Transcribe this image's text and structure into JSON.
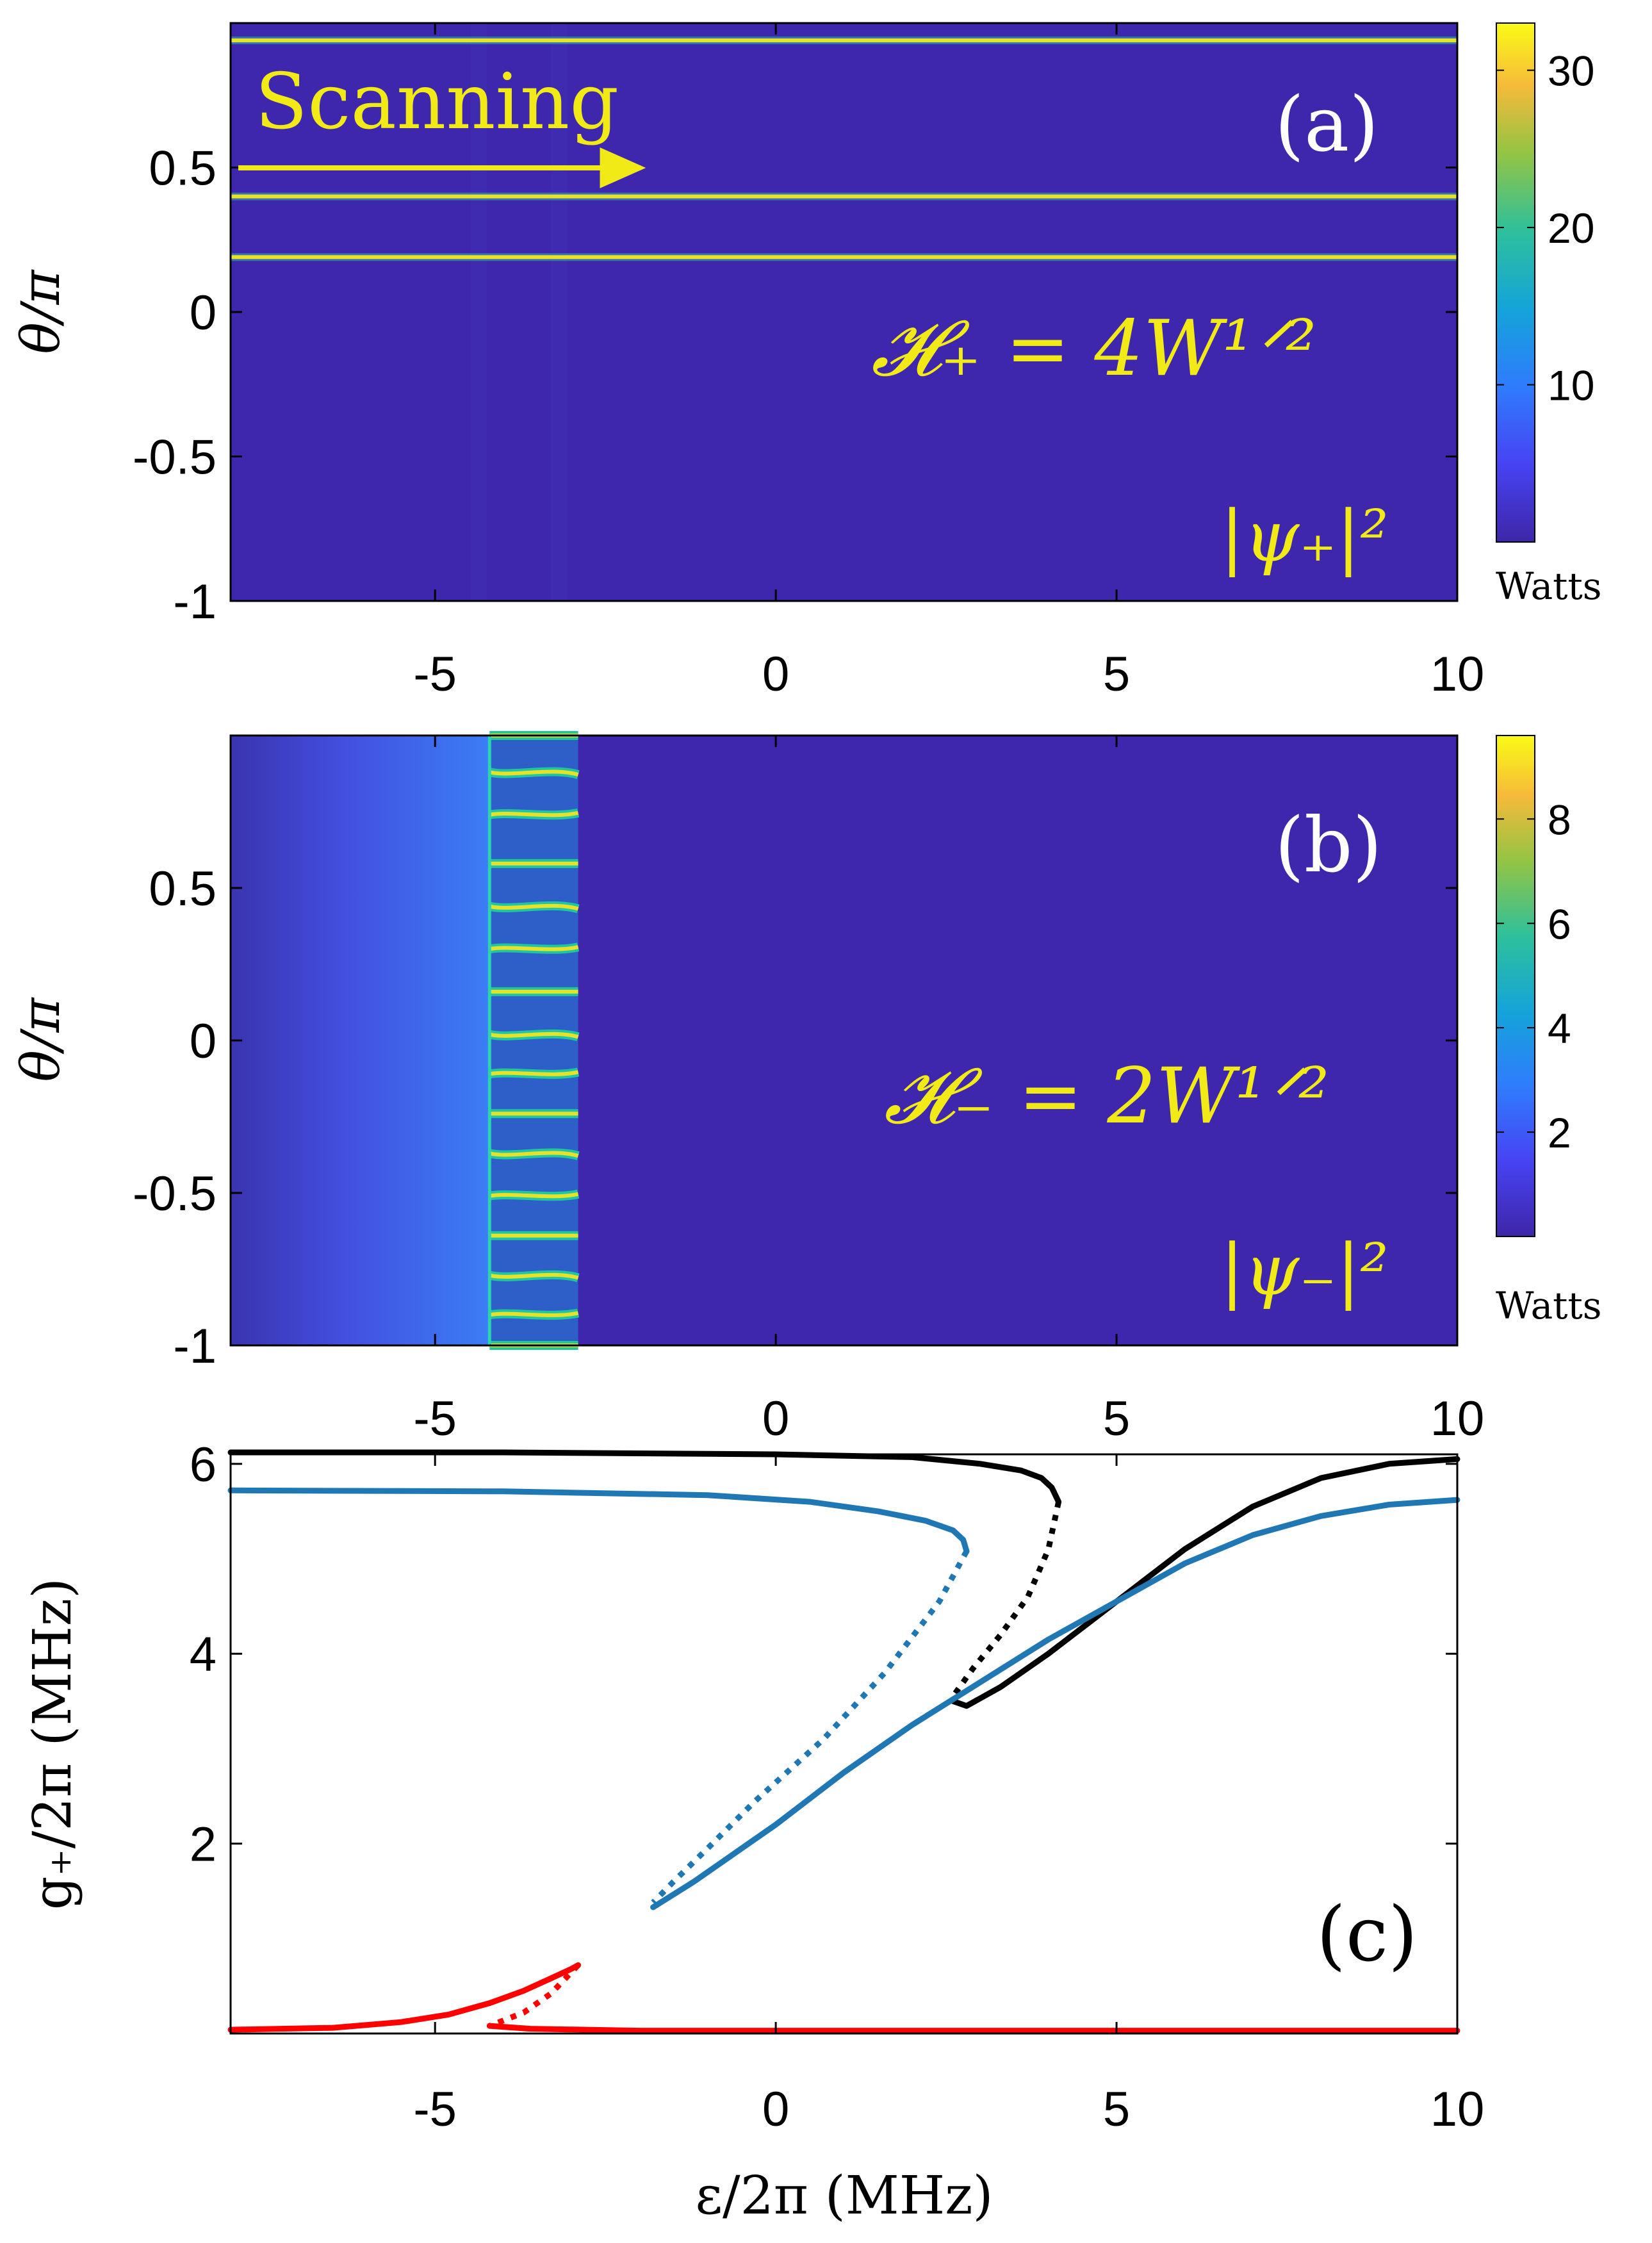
{
  "figure": {
    "panels": [
      {
        "id": "a",
        "label": "(a)",
        "ylabel": "θ/π",
        "annotation": "𝓗₊ = 4W¹ᐟ²",
        "field_label": "|ψ₊|²",
        "scan_label": "Scanning",
        "colorbar_unit": "Watts",
        "colorbar_ticks": [
          "10",
          "20",
          "30"
        ]
      },
      {
        "id": "b",
        "label": "(b)",
        "ylabel": "θ/π",
        "annotation": "𝓗₋ = 2W¹ᐟ²",
        "field_label": "|ψ₋|²",
        "colorbar_unit": "Watts",
        "colorbar_ticks": [
          "2",
          "4",
          "6",
          "8"
        ]
      },
      {
        "id": "c",
        "label": "(c)",
        "ylabel": "g₊/2π  (MHz)",
        "xlabel": "ε/2π  (MHz)"
      }
    ],
    "x_ticks": [
      "-5",
      "0",
      "5",
      "10"
    ],
    "theta_ticks": [
      "0.5",
      "0",
      "-0.5",
      "-1"
    ],
    "g_ticks": [
      "6",
      "4",
      "2"
    ]
  },
  "chart_data": [
    {
      "type": "heatmap",
      "panel": "a",
      "xlim": [
        -8,
        10
      ],
      "ylim": [
        -1,
        1
      ],
      "zlim": [
        0,
        33
      ],
      "colorbar_ticks": [
        10,
        20,
        30
      ],
      "background_value": 1.2,
      "lines_theta": [
        0.94,
        0.4,
        0.19
      ],
      "line_value": 25,
      "scan_arrow_x": [
        -8,
        -1.7
      ]
    },
    {
      "type": "heatmap",
      "panel": "b",
      "xlim": [
        -8,
        10
      ],
      "ylim": [
        -1,
        1
      ],
      "zlim": [
        0,
        9.6
      ],
      "colorbar_ticks": [
        2,
        4,
        6,
        8
      ],
      "background_value": 1.0,
      "gradient_region_x": [
        -8,
        -4.2
      ],
      "pattern_region_x": [
        -4.2,
        -2.9
      ],
      "pattern_theta": [
        1.0,
        0.88,
        0.74,
        0.58,
        0.44,
        0.3,
        0.16,
        0.02,
        -0.11,
        -0.24,
        -0.37,
        -0.51,
        -0.64,
        -0.77,
        -0.9,
        -1.0
      ],
      "pattern_value": 8
    },
    {
      "type": "line",
      "panel": "c",
      "xlim": [
        -8,
        10
      ],
      "ylim": [
        0,
        6.1
      ],
      "series": [
        {
          "name": "black stable upper",
          "color": "#000000",
          "style": "solid",
          "x": [
            -8,
            -4,
            0,
            2,
            3,
            3.6,
            3.9,
            4.05,
            4.15
          ],
          "y": [
            6.12,
            6.12,
            6.1,
            6.07,
            6.0,
            5.93,
            5.85,
            5.75,
            5.6
          ]
        },
        {
          "name": "black unstable",
          "color": "#000000",
          "style": "dotted",
          "x": [
            4.15,
            4.0,
            3.7,
            3.3,
            2.9,
            2.6
          ],
          "y": [
            5.6,
            5.1,
            4.6,
            4.2,
            3.85,
            3.55
          ]
        },
        {
          "name": "black stable lower",
          "color": "#000000",
          "style": "solid",
          "x": [
            2.6,
            2.8,
            3.3,
            4,
            5,
            6,
            7,
            8,
            9,
            10
          ],
          "y": [
            3.5,
            3.45,
            3.65,
            4.0,
            4.55,
            5.1,
            5.55,
            5.85,
            6.0,
            6.05
          ]
        },
        {
          "name": "blue stable upper",
          "color": "#1f77b4",
          "style": "solid",
          "x": [
            -8,
            -4,
            -1,
            0.5,
            1.5,
            2.2,
            2.6,
            2.75,
            2.8
          ],
          "y": [
            5.72,
            5.71,
            5.67,
            5.6,
            5.5,
            5.4,
            5.3,
            5.2,
            5.08
          ]
        },
        {
          "name": "blue unstable",
          "color": "#1f77b4",
          "style": "dotted",
          "x": [
            2.8,
            2.4,
            1.6,
            0.7,
            -0.3,
            -1.0,
            -1.5,
            -1.8
          ],
          "y": [
            5.08,
            4.55,
            3.8,
            3.1,
            2.45,
            1.95,
            1.6,
            1.38
          ]
        },
        {
          "name": "blue stable lower",
          "color": "#1f77b4",
          "style": "solid",
          "x": [
            -1.8,
            -1.2,
            0,
            1,
            2,
            3,
            4,
            5,
            6,
            7,
            8,
            9,
            10
          ],
          "y": [
            1.33,
            1.6,
            2.2,
            2.75,
            3.25,
            3.7,
            4.15,
            4.55,
            4.95,
            5.25,
            5.45,
            5.57,
            5.62
          ]
        },
        {
          "name": "red stable upper",
          "color": "#ff0000",
          "style": "solid",
          "x": [
            -8,
            -6.5,
            -5.5,
            -4.8,
            -4.2,
            -3.7,
            -3.3,
            -3.0,
            -2.9
          ],
          "y": [
            0.04,
            0.06,
            0.12,
            0.2,
            0.32,
            0.45,
            0.58,
            0.68,
            0.72
          ]
        },
        {
          "name": "red unstable",
          "color": "#ff0000",
          "style": "dotted",
          "x": [
            -2.9,
            -3.3,
            -3.7,
            -4.2
          ],
          "y": [
            0.72,
            0.42,
            0.22,
            0.08
          ]
        },
        {
          "name": "red stable lower",
          "color": "#ff0000",
          "style": "solid",
          "x": [
            -4.2,
            -3.6,
            -2,
            0,
            5,
            10
          ],
          "y": [
            0.08,
            0.05,
            0.03,
            0.03,
            0.03,
            0.03
          ]
        }
      ],
      "ylabel": "g₊/2π (MHz)",
      "xlabel": "ε/2π (MHz)"
    }
  ]
}
